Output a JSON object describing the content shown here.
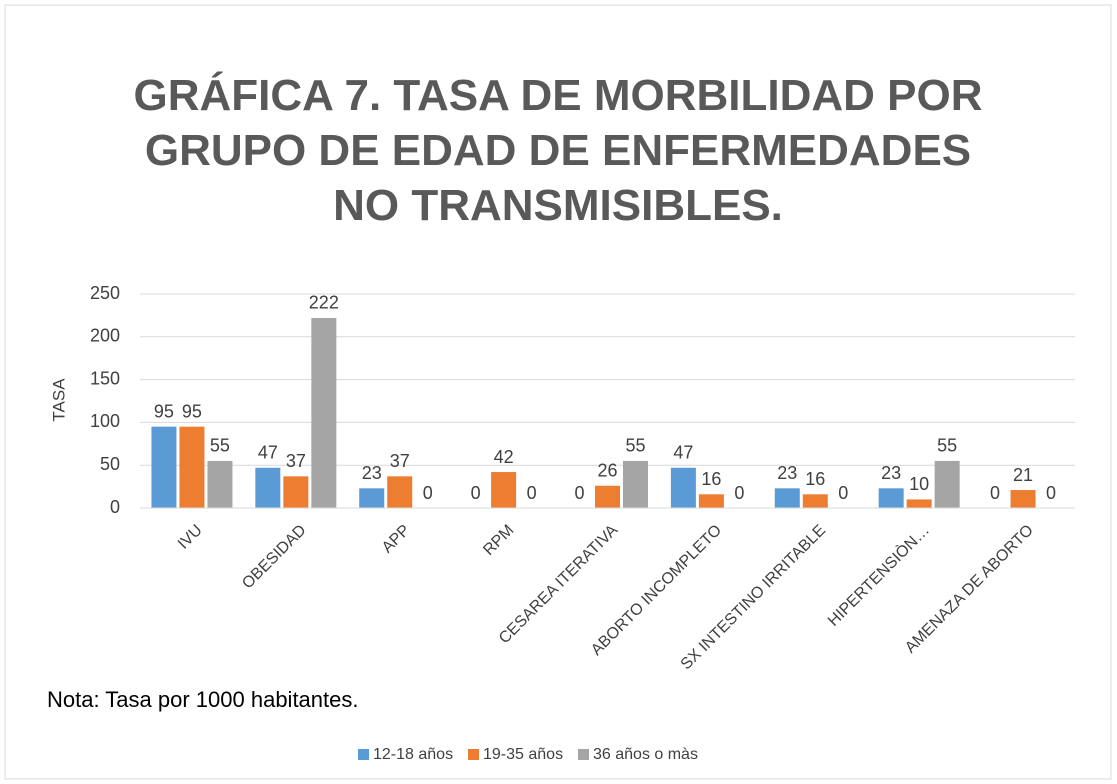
{
  "chart_data": {
    "type": "bar",
    "title": "GRÁFICA 7. TASA DE MORBILIDAD POR GRUPO DE EDAD DE ENFERMEDADES NO TRANSMISIBLES.",
    "y_label": "TASA",
    "note": "Nota: Tasa por 1000 habitantes.",
    "categories": [
      "IVU",
      "OBESIDAD",
      "APP",
      "RPM",
      "CESAREA ITERATIVA",
      "ABORTO INCOMPLETO",
      "SX INTESTINO IRRITABLE",
      "HIPERTENSIÒN…",
      "AMENAZA DE ABORTO"
    ],
    "series": [
      {
        "name": "12-18 años",
        "color": "#5b9bd5",
        "values": [
          95,
          47,
          23,
          0,
          0,
          47,
          23,
          23,
          0
        ]
      },
      {
        "name": "19-35 años",
        "color": "#ed7d31",
        "values": [
          95,
          37,
          37,
          42,
          26,
          16,
          16,
          10,
          21
        ]
      },
      {
        "name": "36 años o màs",
        "color": "#a5a5a5",
        "values": [
          55,
          222,
          0,
          0,
          55,
          0,
          0,
          55,
          0
        ]
      }
    ],
    "ylim": [
      0,
      250
    ],
    "yticks": [
      0,
      50,
      100,
      150,
      200,
      250
    ],
    "grid": true,
    "legend": "bottom"
  }
}
